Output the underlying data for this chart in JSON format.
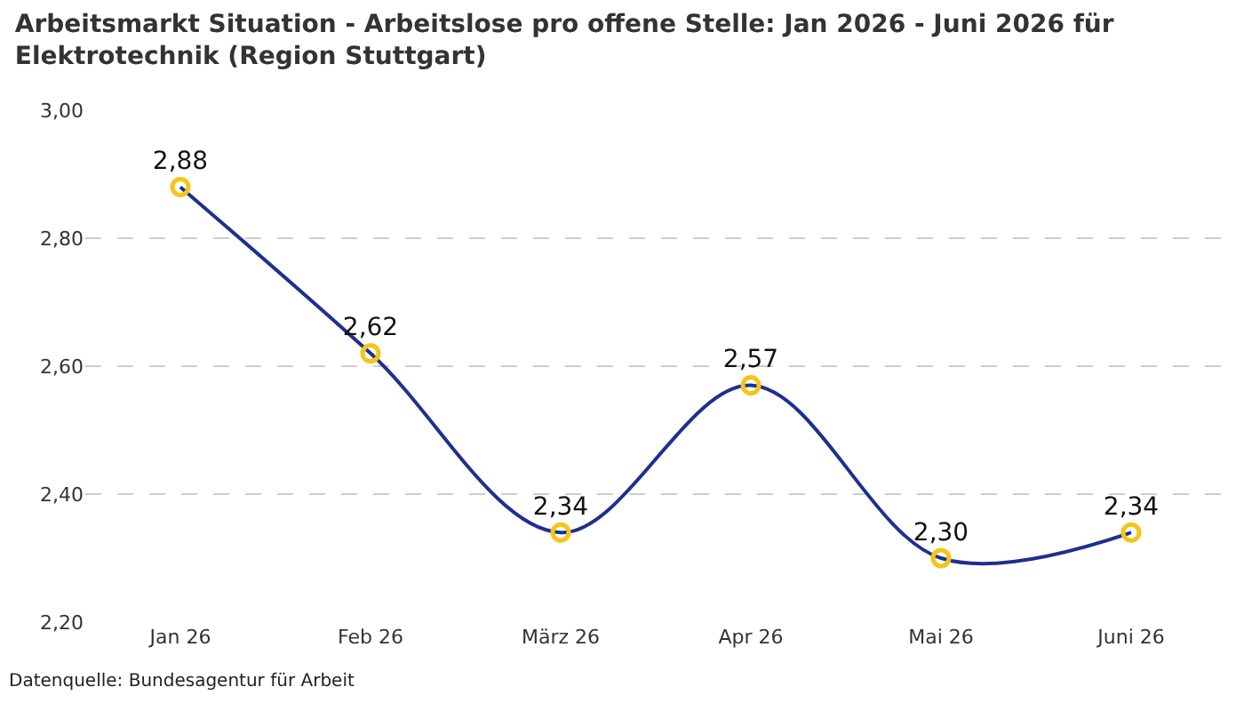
{
  "chart_data": {
    "type": "line",
    "title": "Arbeitsmarkt Situation - Arbeitslose pro offene Stelle: Jan 2026 - Juni 2026 für Elektrotechnik (Region Stuttgart)",
    "categories": [
      "Jan 26",
      "Feb 26",
      "März 26",
      "Apr 26",
      "Mai 26",
      "Juni 26"
    ],
    "series": [
      {
        "color": "#1f2f8f",
        "values": [
          2.88,
          2.62,
          2.34,
          2.57,
          2.3,
          2.34
        ],
        "value_labels": [
          "2,88",
          "2,62",
          "2,34",
          "2,57",
          "2,30",
          "2,34"
        ]
      }
    ],
    "ylim": [
      2.2,
      3.0
    ],
    "yticks": [
      {
        "value": 2.2,
        "label": "2,20"
      },
      {
        "value": 2.4,
        "label": "2,40"
      },
      {
        "value": 2.6,
        "label": "2,60"
      },
      {
        "value": 2.8,
        "label": "2,80"
      },
      {
        "value": 3.0,
        "label": "3,00"
      }
    ],
    "grid": "y",
    "legend": false,
    "marker": "circle",
    "line_style": "solid",
    "annotations": [
      "Datenquelle: Bundesagentur für Arbeit"
    ]
  }
}
